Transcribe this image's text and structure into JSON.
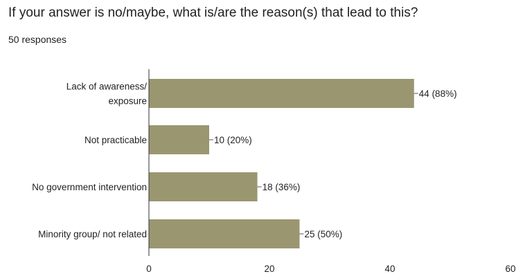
{
  "question": {
    "title": "If your answer is no/maybe, what is/are the reason(s) that lead to this?",
    "responses": "50 responses"
  },
  "chart_data": {
    "type": "bar",
    "orientation": "horizontal",
    "categories": [
      [
        "Lack of awareness/",
        "exposure"
      ],
      [
        "Not practicable"
      ],
      [
        "No government intervention"
      ],
      [
        "Minority group/ not related"
      ]
    ],
    "values": [
      44,
      10,
      18,
      25
    ],
    "data_labels": [
      "44 (88%)",
      "10 (20%)",
      "18 (36%)",
      "25 (50%)"
    ],
    "xlim": [
      0,
      60
    ],
    "xticks": [
      0,
      20,
      40,
      60
    ],
    "grid": false,
    "bar_color": "#9a9670"
  }
}
